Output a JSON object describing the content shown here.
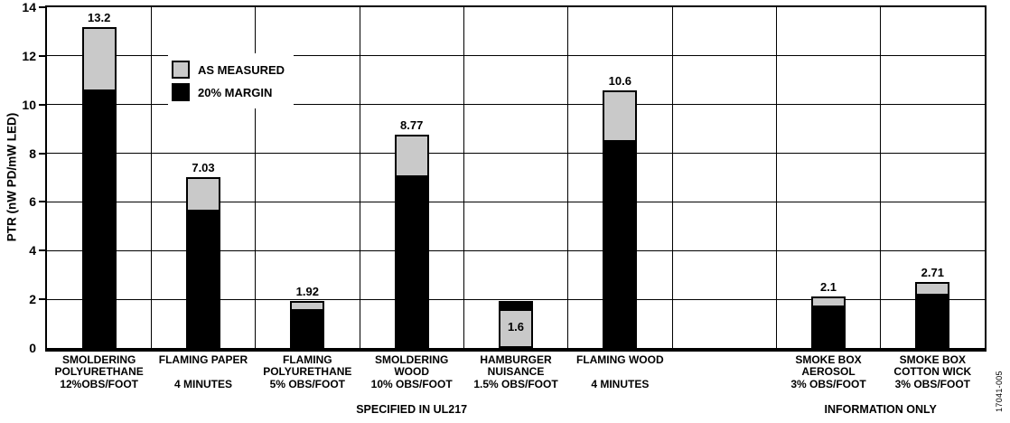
{
  "figure": {
    "code": "17041-005",
    "background": "#ffffff"
  },
  "colors": {
    "as_measured_fill": "#c9c9c9",
    "margin_fill": "#000000",
    "axis": "#000000",
    "grid": "#000000",
    "text": "#000000"
  },
  "legend": {
    "items": [
      {
        "label": "AS MEASURED",
        "series": "AS MEASURED"
      },
      {
        "label": "20% MARGIN",
        "series": "20% MARGIN"
      }
    ]
  },
  "chart_data": {
    "type": "bar",
    "stacked": true,
    "title": "",
    "xlabel": "",
    "ylabel": "PTR (nW PD/mW LED)",
    "ylim": [
      0,
      14
    ],
    "yticks": [
      0,
      2,
      4,
      6,
      8,
      10,
      12,
      14
    ],
    "grid": true,
    "legend_entries": [
      "AS MEASURED",
      "20% MARGIN"
    ],
    "legend_position": "upper left inside",
    "series_names": [
      "20% MARGIN",
      "AS MEASURED"
    ],
    "categories": [
      {
        "label_lines": [
          "SMOLDERING",
          "POLYURETHANE",
          "12%OBS/FOOT"
        ],
        "total": 13.2,
        "value_label": "13.2",
        "value_label_placement": "above",
        "segments": [
          {
            "series": "20% MARGIN",
            "from": 0,
            "to": 10.56
          },
          {
            "series": "AS MEASURED",
            "from": 10.56,
            "to": 13.2
          }
        ]
      },
      {
        "label_lines": [
          "FLAMING PAPER",
          "",
          "4 MINUTES"
        ],
        "total": 7.03,
        "value_label": "7.03",
        "value_label_placement": "above",
        "segments": [
          {
            "series": "20% MARGIN",
            "from": 0,
            "to": 5.62
          },
          {
            "series": "AS MEASURED",
            "from": 5.62,
            "to": 7.03
          }
        ]
      },
      {
        "label_lines": [
          "FLAMING",
          "POLYURETHANE",
          "5% OBS/FOOT"
        ],
        "total": 1.92,
        "value_label": "1.92",
        "value_label_placement": "above",
        "segments": [
          {
            "series": "20% MARGIN",
            "from": 0,
            "to": 1.54
          },
          {
            "series": "AS MEASURED",
            "from": 1.54,
            "to": 1.92
          }
        ]
      },
      {
        "label_lines": [
          "SMOLDERING",
          "WOOD",
          "10% OBS/FOOT"
        ],
        "total": 8.77,
        "value_label": "8.77",
        "value_label_placement": "above",
        "segments": [
          {
            "series": "20% MARGIN",
            "from": 0,
            "to": 7.02
          },
          {
            "series": "AS MEASURED",
            "from": 7.02,
            "to": 8.77
          }
        ]
      },
      {
        "label_lines": [
          "HAMBURGER",
          "NUISANCE",
          "1.5% OBS/FOOT"
        ],
        "total": 1.92,
        "value_label": "1.6",
        "value_label_placement": "inside",
        "segments": [
          {
            "series": "AS MEASURED",
            "from": 0,
            "to": 1.6
          },
          {
            "series": "20% MARGIN",
            "from": 1.6,
            "to": 1.92
          }
        ]
      },
      {
        "label_lines": [
          "FLAMING WOOD",
          "",
          "4 MINUTES"
        ],
        "total": 10.6,
        "value_label": "10.6",
        "value_label_placement": "above",
        "segments": [
          {
            "series": "20% MARGIN",
            "from": 0,
            "to": 8.48
          },
          {
            "series": "AS MEASURED",
            "from": 8.48,
            "to": 10.6
          }
        ]
      },
      {
        "label_lines": [],
        "total": null,
        "value_label": "",
        "value_label_placement": "none",
        "segments": []
      },
      {
        "label_lines": [
          "SMOKE BOX",
          "AEROSOL",
          "3% OBS/FOOT"
        ],
        "total": 2.1,
        "value_label": "2.1",
        "value_label_placement": "above",
        "segments": [
          {
            "series": "20% MARGIN",
            "from": 0,
            "to": 1.68
          },
          {
            "series": "AS MEASURED",
            "from": 1.68,
            "to": 2.1
          }
        ]
      },
      {
        "label_lines": [
          "SMOKE BOX",
          "COTTON WICK",
          "3% OBS/FOOT"
        ],
        "total": 2.71,
        "value_label": "2.71",
        "value_label_placement": "above",
        "segments": [
          {
            "series": "20% MARGIN",
            "from": 0,
            "to": 2.17
          },
          {
            "series": "AS MEASURED",
            "from": 2.17,
            "to": 2.71
          }
        ]
      }
    ],
    "group_labels": [
      {
        "text": "SPECIFIED IN UL217",
        "col_start": 0,
        "col_end": 6
      },
      {
        "text": "INFORMATION ONLY",
        "col_start": 7,
        "col_end": 8
      }
    ]
  }
}
